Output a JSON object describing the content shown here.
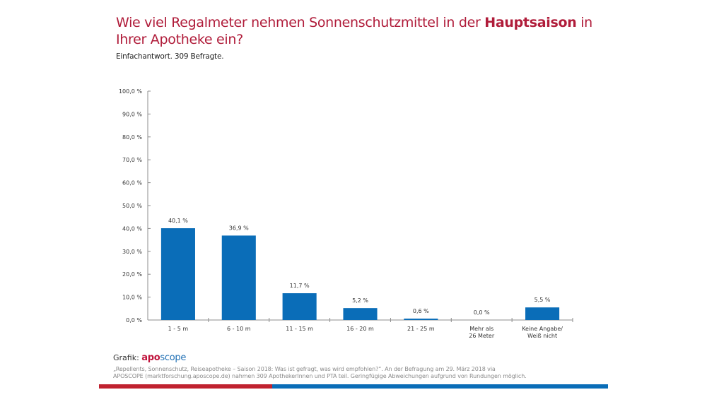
{
  "header": {
    "title_part1": "Wie viel Regalmeter nehmen Sonnenschutzmittel in der ",
    "title_bold": "Hauptsaison",
    "title_part2": " in Ihrer Apotheke ein?",
    "subtitle": "Einfachantwort. 309 Befragte."
  },
  "chart_data": {
    "type": "bar",
    "title": "Wie viel Regalmeter nehmen Sonnenschutzmittel in der Hauptsaison in Ihrer Apotheke ein?",
    "subtitle": "Einfachantwort. 309 Befragte.",
    "xlabel": "",
    "ylabel": "",
    "ylim": [
      0,
      100
    ],
    "yticks": [
      0,
      10,
      20,
      30,
      40,
      50,
      60,
      70,
      80,
      90,
      100
    ],
    "ytick_labels": [
      "0,0 %",
      "10,0 %",
      "20,0 %",
      "30,0 %",
      "40,0 %",
      "50,0 %",
      "60,0 %",
      "70,0 %",
      "80,0 %",
      "90,0 %",
      "100,0 %"
    ],
    "grid": false,
    "legend": "none",
    "bar_color": "#0a6db8",
    "categories": [
      [
        "1 - 5 m"
      ],
      [
        "6 - 10 m"
      ],
      [
        "11 - 15 m"
      ],
      [
        "16 - 20 m"
      ],
      [
        "21 - 25 m"
      ],
      [
        "Mehr als",
        "26 Meter"
      ],
      [
        "Keine Angabe/",
        "Weiß nicht"
      ]
    ],
    "values": [
      40.1,
      36.9,
      11.7,
      5.2,
      0.6,
      0.0,
      5.5
    ],
    "value_labels": [
      "40,1 %",
      "36,9 %",
      "11,7 %",
      "5,2 %",
      "0,6 %",
      "0,0 %",
      "5,5 %"
    ]
  },
  "footer": {
    "credit_label": "Grafik:",
    "logo_part1": "apo",
    "logo_part2": "scope",
    "source_line1": "„Repellents, Sonnenschutz, Reiseapotheke – Saison 2018: Was ist gefragt, was wird empfohlen?“. An der Befragung am 29. März 2018 via",
    "source_line2": "APOSCOPE (marktforschung.aposcope.de) nahmen 309 ApothekerInnen und PTA teil. Geringfügige Abweichungen aufgrund von Rundungen möglich.",
    "brand_red": "#c0222f",
    "brand_blue": "#0a6db8"
  }
}
